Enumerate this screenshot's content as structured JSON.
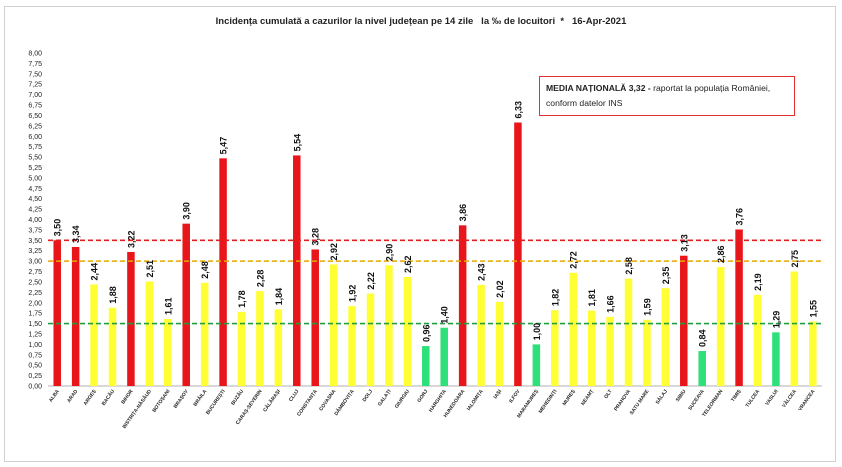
{
  "chart_data": {
    "type": "bar",
    "title": "Incidența cumulată a cazurilor la nivel județean pe 14 zile   la ‰ de locuitori  *   16-Apr-2021",
    "annotation": {
      "bold": "MEDIA NAȚIONALĂ 3,32 -",
      "rest": " raportat la populația României, conform datelor INS"
    },
    "ylim": [
      0,
      8
    ],
    "y_ticks": [
      "0,00",
      "0,25",
      "0,50",
      "0,75",
      "1,00",
      "1,25",
      "1,50",
      "1,75",
      "2,00",
      "2,25",
      "2,50",
      "2,75",
      "3,00",
      "3,25",
      "3,50",
      "3,75",
      "4,00",
      "4,25",
      "4,50",
      "4,75",
      "5,00",
      "5,25",
      "5,50",
      "5,75",
      "6,00",
      "6,25",
      "6,50",
      "6,75",
      "7,00",
      "7,25",
      "7,50",
      "7,75",
      "8,00"
    ],
    "grid": false,
    "reference_lines": [
      {
        "value": 3.5,
        "color": "#e02020"
      },
      {
        "value": 3.0,
        "color": "#e8a800"
      },
      {
        "value": 1.5,
        "color": "#20a040"
      }
    ],
    "categories": [
      "ALBA",
      "ARAD",
      "ARGEȘ",
      "BACĂU",
      "BIHOR",
      "BISTRIȚA-NĂSĂUD",
      "BOTOȘANI",
      "BRAȘOV",
      "BRĂILA",
      "BUCUREȘTI",
      "BUZĂU",
      "CARAȘ-SEVERIN",
      "CĂLĂRAȘI",
      "CLUJ",
      "CONSTANȚA",
      "COVASNA",
      "DÂMBOVIȚA",
      "DOLJ",
      "GALAȚI",
      "GIURGIU",
      "GORJ",
      "HARGHITA",
      "HUNEDOARA",
      "IALOMIȚA",
      "IAȘI",
      "ILFOV",
      "MARAMUREȘ",
      "MEHEDINȚI",
      "MUREȘ",
      "NEAMȚ",
      "OLT",
      "PRAHOVA",
      "SATU MARE",
      "SĂLAJ",
      "SIBIU",
      "SUCEAVA",
      "TELEORMAN",
      "TIMIȘ",
      "TULCEA",
      "VASLUI",
      "VÂLCEA",
      "VRANCEA"
    ],
    "values": [
      3.5,
      3.34,
      2.44,
      1.88,
      3.22,
      2.51,
      1.61,
      3.9,
      2.48,
      5.47,
      1.78,
      2.28,
      1.84,
      5.54,
      3.28,
      2.92,
      1.92,
      2.22,
      2.9,
      2.62,
      0.96,
      1.4,
      3.86,
      2.43,
      2.02,
      6.33,
      1.0,
      1.82,
      2.72,
      1.81,
      1.66,
      2.58,
      1.59,
      2.35,
      3.13,
      0.84,
      2.86,
      3.76,
      2.19,
      1.29,
      2.75,
      1.55
    ],
    "value_labels": [
      "3,50",
      "3,34",
      "2,44",
      "1,88",
      "3,22",
      "2,51",
      "1,61",
      "3,90",
      "2,48",
      "5,47",
      "1,78",
      "2,28",
      "1,84",
      "5,54",
      "3,28",
      "2,92",
      "1,92",
      "2,22",
      "2,90",
      "2,62",
      "0,96",
      "1,40",
      "3,86",
      "2,43",
      "2,02",
      "6,33",
      "1,00",
      "1,82",
      "2,72",
      "1,81",
      "1,66",
      "2,58",
      "1,59",
      "2,35",
      "3,13",
      "0,84",
      "2,86",
      "3,76",
      "2,19",
      "1,29",
      "2,75",
      "1,55"
    ],
    "bar_colors": {
      "red": "#e8151b",
      "yellow": "#ffff33",
      "green": "#2ee07a"
    },
    "bar_color_keys": [
      "red",
      "red",
      "yellow",
      "yellow",
      "red",
      "yellow",
      "yellow",
      "red",
      "yellow",
      "red",
      "yellow",
      "yellow",
      "yellow",
      "red",
      "red",
      "yellow",
      "yellow",
      "yellow",
      "yellow",
      "yellow",
      "green",
      "green",
      "red",
      "yellow",
      "yellow",
      "red",
      "green",
      "yellow",
      "yellow",
      "yellow",
      "yellow",
      "yellow",
      "yellow",
      "yellow",
      "red",
      "green",
      "yellow",
      "red",
      "yellow",
      "green",
      "yellow",
      "yellow"
    ]
  }
}
